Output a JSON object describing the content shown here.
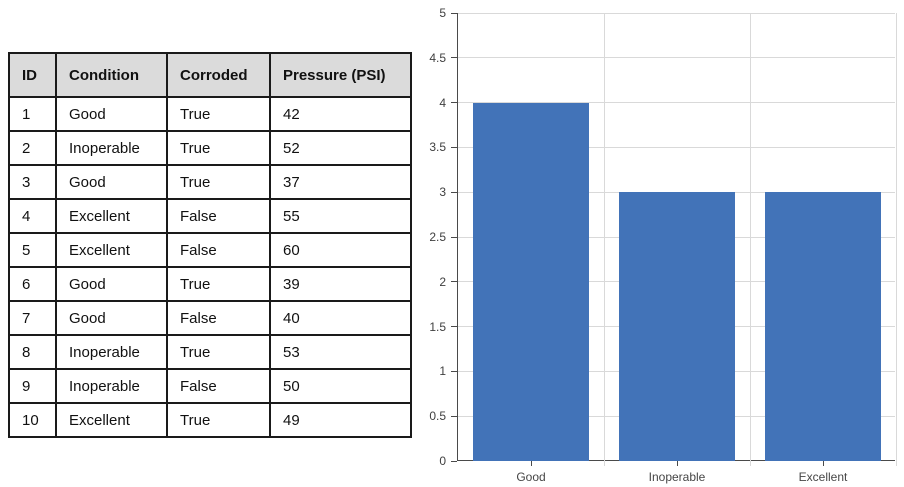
{
  "table": {
    "headers": [
      "ID",
      "Condition",
      "Corroded",
      "Pressure (PSI)"
    ],
    "rows": [
      [
        "1",
        "Good",
        "True",
        "42"
      ],
      [
        "2",
        "Inoperable",
        "True",
        "52"
      ],
      [
        "3",
        "Good",
        "True",
        "37"
      ],
      [
        "4",
        "Excellent",
        "False",
        "55"
      ],
      [
        "5",
        "Excellent",
        "False",
        "60"
      ],
      [
        "6",
        "Good",
        "True",
        "39"
      ],
      [
        "7",
        "Good",
        "False",
        "40"
      ],
      [
        "8",
        "Inoperable",
        "True",
        "53"
      ],
      [
        "9",
        "Inoperable",
        "False",
        "50"
      ],
      [
        "10",
        "Excellent",
        "True",
        "49"
      ]
    ],
    "header_bg": "#DBDBDB",
    "border_color": "#1A1A1A"
  },
  "chart_data": {
    "type": "bar",
    "categories": [
      "Good",
      "Inoperable",
      "Excellent"
    ],
    "values": [
      4,
      3,
      3
    ],
    "title": "",
    "xlabel": "",
    "ylabel": "",
    "ylim": [
      0,
      5
    ],
    "ytick_step": 0.5,
    "ytick_labels": [
      "0",
      "0.5",
      "1",
      "1.5",
      "2",
      "2.5",
      "3",
      "3.5",
      "4",
      "4.5",
      "5"
    ],
    "bar_color": "#4273B8",
    "gridline_color": "#D9D9D9",
    "axis_color": "#4A4A4A",
    "label_color": "#464646",
    "grid": true,
    "legend": false,
    "legend_position": "none",
    "bar_width_fraction": 0.8
  }
}
